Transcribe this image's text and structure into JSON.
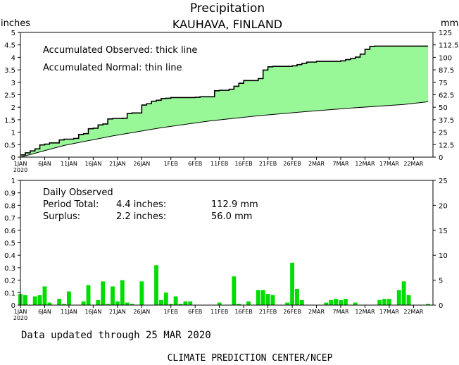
{
  "header": {
    "title": "Precipitation",
    "subtitle": "KAUHAVA, FINLAND",
    "left_unit": "inches",
    "right_unit": "mm"
  },
  "footer": {
    "updated": "Data updated through 25 MAR 2020",
    "credit": "CLIMATE PREDICTION CENTER/NCEP"
  },
  "colors": {
    "fill": "#98F898",
    "bar": "#00DD00",
    "line": "#000000"
  },
  "chart_data": [
    {
      "type": "area",
      "legend": [
        "Accumulated Observed: thick line",
        "Accumulated Normal: thin line"
      ],
      "x_unit": "day of 2020 (1 = 1 JAN)",
      "xlim": [
        1,
        86
      ],
      "ylim_inches": [
        0,
        5
      ],
      "ylim_mm": [
        0,
        125
      ],
      "y_ticks_inches": [
        "0",
        "0.5",
        "1",
        "1.5",
        "2",
        "2.5",
        "3",
        "3.5",
        "4",
        "4.5",
        "5"
      ],
      "y_ticks_mm": [
        "0",
        "12.5",
        "25",
        "37.5",
        "50",
        "62.5",
        "75",
        "87.5",
        "100",
        "112.5",
        "125"
      ],
      "x_ticks": [
        {
          "day": 1,
          "label": "1JAN"
        },
        {
          "day": 6,
          "label": "6JAN"
        },
        {
          "day": 11,
          "label": "11JAN"
        },
        {
          "day": 16,
          "label": "16JAN"
        },
        {
          "day": 21,
          "label": "21JAN"
        },
        {
          "day": 26,
          "label": "26JAN"
        },
        {
          "day": 32,
          "label": "1FEB"
        },
        {
          "day": 37,
          "label": "6FEB"
        },
        {
          "day": 42,
          "label": "11FEB"
        },
        {
          "day": 47,
          "label": "16FEB"
        },
        {
          "day": 52,
          "label": "21FEB"
        },
        {
          "day": 57,
          "label": "26FEB"
        },
        {
          "day": 62,
          "label": "2MAR"
        },
        {
          "day": 67,
          "label": "7MAR"
        },
        {
          "day": 72,
          "label": "12MAR"
        },
        {
          "day": 77,
          "label": "17MAR"
        },
        {
          "day": 82,
          "label": "22MAR"
        }
      ],
      "year_label": "2020",
      "observed": {
        "name": "Accumulated Observed",
        "x": [
          1,
          2,
          3,
          4,
          5,
          6,
          7,
          8,
          9,
          10,
          11,
          12,
          13,
          14,
          15,
          16,
          17,
          18,
          19,
          20,
          21,
          22,
          23,
          24,
          25,
          26,
          27,
          28,
          29,
          30,
          31,
          32,
          33,
          34,
          35,
          36,
          37,
          38,
          39,
          40,
          41,
          42,
          43,
          44,
          45,
          46,
          47,
          48,
          49,
          50,
          51,
          52,
          53,
          54,
          55,
          56,
          57,
          58,
          59,
          60,
          61,
          62,
          63,
          64,
          65,
          66,
          67,
          68,
          69,
          70,
          71,
          72,
          73,
          74,
          75,
          76,
          77,
          78,
          79,
          80,
          81,
          82,
          83,
          84,
          85
        ],
        "inches": [
          0.09,
          0.17,
          0.25,
          0.33,
          0.49,
          0.52,
          0.57,
          0.57,
          0.69,
          0.72,
          0.72,
          0.75,
          0.91,
          0.94,
          1.14,
          1.16,
          1.29,
          1.33,
          1.53,
          1.55,
          1.55,
          1.56,
          1.75,
          1.77,
          1.77,
          2.09,
          2.14,
          2.24,
          2.28,
          2.35,
          2.36,
          2.39,
          2.39,
          2.39,
          2.39,
          2.39,
          2.4,
          2.42,
          2.42,
          2.42,
          2.66,
          2.68,
          2.68,
          2.72,
          2.84,
          2.96,
          3.07,
          3.07,
          3.07,
          3.15,
          3.49,
          3.62,
          3.64,
          3.64,
          3.64,
          3.64,
          3.66,
          3.71,
          3.76,
          3.81,
          3.81,
          3.84,
          3.84,
          3.84,
          3.84,
          3.84,
          3.86,
          3.91,
          3.95,
          4.01,
          4.13,
          4.32,
          4.44,
          4.45,
          4.45,
          4.45,
          4.45,
          4.45,
          4.45,
          4.45,
          4.45,
          4.45,
          4.45,
          4.45,
          4.45
        ]
      },
      "normal": {
        "name": "Accumulated Normal",
        "x": [
          1,
          10,
          20,
          30,
          40,
          50,
          60,
          70,
          80,
          85
        ],
        "inches": [
          0.0,
          0.47,
          0.85,
          1.18,
          1.45,
          1.66,
          1.83,
          1.98,
          2.11,
          2.22
        ]
      }
    },
    {
      "type": "bar",
      "label": "Daily Observed",
      "summary": {
        "total_label": "Period Total:",
        "total_inches": "4.4 inches:",
        "total_mm": "112.9 mm",
        "surplus_label": "Surplus:",
        "surplus_inches": "2.2 inches:",
        "surplus_mm": "56.0 mm"
      },
      "ylim_inches": [
        0,
        1
      ],
      "ylim_mm": [
        0,
        25
      ],
      "y_ticks_inches": [
        "0",
        "0.1",
        "0.2",
        "0.3",
        "0.4",
        "0.5",
        "0.6",
        "0.7",
        "0.8",
        "0.9",
        "1"
      ],
      "y_ticks_mm": [
        "0",
        "5",
        "10",
        "15",
        "20",
        "25"
      ],
      "x": [
        1,
        2,
        3,
        4,
        5,
        6,
        7,
        8,
        9,
        10,
        11,
        12,
        13,
        14,
        15,
        16,
        17,
        18,
        19,
        20,
        21,
        22,
        23,
        24,
        25,
        26,
        27,
        28,
        29,
        30,
        31,
        32,
        33,
        34,
        35,
        36,
        37,
        38,
        39,
        40,
        41,
        42,
        43,
        44,
        45,
        46,
        47,
        48,
        49,
        50,
        51,
        52,
        53,
        54,
        55,
        56,
        57,
        58,
        59,
        60,
        61,
        62,
        63,
        64,
        65,
        66,
        67,
        68,
        69,
        70,
        71,
        72,
        73,
        74,
        75,
        76,
        77,
        78,
        79,
        80,
        81,
        82,
        83,
        84,
        85
      ],
      "inches": [
        0.09,
        0.08,
        0.0,
        0.07,
        0.08,
        0.15,
        0.02,
        0.0,
        0.05,
        0.01,
        0.11,
        0.0,
        0.0,
        0.03,
        0.16,
        0.0,
        0.04,
        0.19,
        0.01,
        0.15,
        0.03,
        0.2,
        0.02,
        0.01,
        0.0,
        0.19,
        0.0,
        0.0,
        0.32,
        0.04,
        0.1,
        0.01,
        0.07,
        0.01,
        0.03,
        0.03,
        0.0,
        0.0,
        0.0,
        0.0,
        0.0,
        0.02,
        0.0,
        0.0,
        0.23,
        0.01,
        0.0,
        0.03,
        0.0,
        0.12,
        0.12,
        0.09,
        0.08,
        0.0,
        0.0,
        0.02,
        0.34,
        0.13,
        0.04,
        0.0,
        0.0,
        0.0,
        0.0,
        0.02,
        0.04,
        0.05,
        0.04,
        0.05,
        0.0,
        0.02,
        0.0,
        0.0,
        0.0,
        0.0,
        0.04,
        0.05,
        0.05,
        0.0,
        0.12,
        0.19,
        0.08,
        0.0,
        0.0,
        0.0,
        0.01
      ]
    }
  ]
}
